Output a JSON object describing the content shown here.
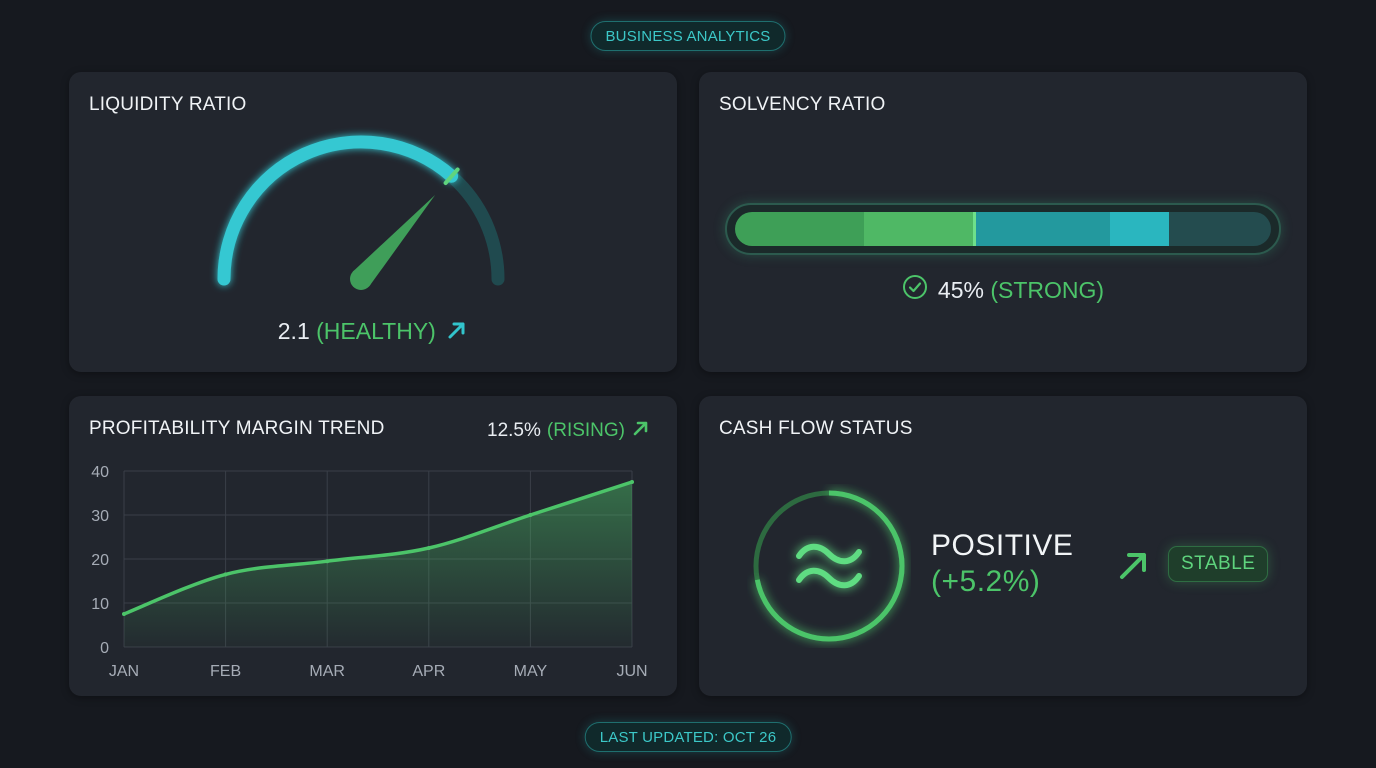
{
  "header": {
    "title": "BUSINESS ANALYTICS"
  },
  "footer": {
    "updated": "LAST UPDATED: OCT 26"
  },
  "colors": {
    "green": "#4cc469",
    "teal": "#32c4cc",
    "background": "#16191f",
    "card": "#22262e"
  },
  "liquidity": {
    "title": "LIQUIDITY RATIO",
    "value": "2.1",
    "status": "(HEALTHY)",
    "gauge_fill_fraction": 0.73,
    "trend_icon": "arrow-up-right-icon"
  },
  "solvency": {
    "title": "SOLVENCY RATIO",
    "value": "45%",
    "status": "(STRONG)",
    "percent": 45,
    "status_icon": "check-circle-icon"
  },
  "profitability": {
    "title": "PROFITABILITY MARGIN TREND",
    "value": "12.5%",
    "status": "(RISING)",
    "trend_icon": "arrow-up-right-icon"
  },
  "cash_flow": {
    "title": "CASH FLOW STATUS",
    "state": "POSITIVE",
    "change": "(+5.2%)",
    "badge": "STABLE",
    "icon": "wave-icon",
    "trend_icon": "arrow-up-right-icon"
  },
  "chart_data": {
    "type": "area",
    "title": "PROFITABILITY MARGIN TREND",
    "x": [
      "JAN",
      "FEB",
      "MAR",
      "APR",
      "MAY",
      "JUN"
    ],
    "values": [
      7.5,
      16.5,
      19.5,
      22.5,
      30,
      37.5
    ],
    "yticks": [
      "0",
      "10",
      "20",
      "30",
      "40"
    ],
    "ylim": [
      0,
      40
    ],
    "grid": true,
    "color": "#4cc469"
  }
}
